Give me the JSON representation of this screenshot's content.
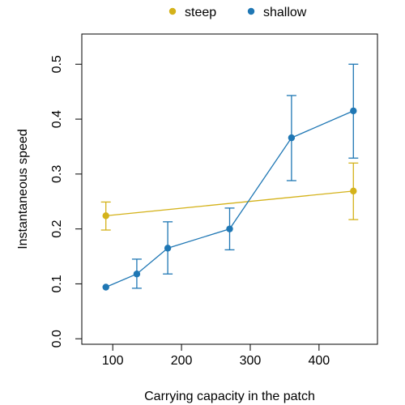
{
  "chart_data": {
    "type": "line",
    "xlabel": "Carrying capacity in the patch",
    "ylabel": "Instantaneous speed",
    "xlim": [
      55,
      485
    ],
    "ylim": [
      -0.01,
      0.555
    ],
    "x_ticks": [
      100,
      200,
      300,
      400
    ],
    "y_ticks": [
      0.0,
      0.1,
      0.2,
      0.3,
      0.4,
      0.5
    ],
    "y_tick_labels": [
      "0.0",
      "0.1",
      "0.2",
      "0.3",
      "0.4",
      "0.5"
    ],
    "legend_position": "top",
    "grid": false,
    "series": [
      {
        "name": "steep",
        "color": "#d4b21a",
        "x": [
          90,
          450
        ],
        "y": [
          0.224,
          0.269
        ],
        "err_low": [
          0.198,
          0.217
        ],
        "err_high": [
          0.249,
          0.32
        ]
      },
      {
        "name": "shallow",
        "color": "#1f77b4",
        "x": [
          90,
          135,
          180,
          270,
          360,
          450
        ],
        "y": [
          0.094,
          0.118,
          0.165,
          0.2,
          0.366,
          0.415
        ],
        "err_low": [
          0.094,
          0.092,
          0.118,
          0.162,
          0.288,
          0.329
        ],
        "err_high": [
          0.094,
          0.145,
          0.213,
          0.238,
          0.443,
          0.5
        ]
      }
    ]
  }
}
